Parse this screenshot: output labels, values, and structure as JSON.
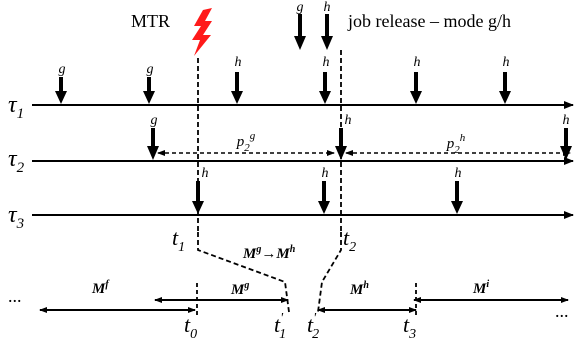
{
  "legend": {
    "mtr": "MTR",
    "arrow_g": "g",
    "arrow_h": "h",
    "job_release_text": "job release – mode g/h"
  },
  "tasks": [
    {
      "id": "tau1",
      "base": "τ",
      "sub": "1"
    },
    {
      "id": "tau2",
      "base": "τ",
      "sub": "2"
    },
    {
      "id": "tau3",
      "base": "τ",
      "sub": "3"
    }
  ],
  "task1_release_labels": [
    "g",
    "g",
    "h",
    "h",
    "h",
    "h"
  ],
  "task2_release_labels": [
    "g",
    "h",
    "h"
  ],
  "task3_release_labels": [
    "h",
    "h",
    "h"
  ],
  "periods": {
    "p2g": {
      "base": "p",
      "sub": "2",
      "sup": "g"
    },
    "p2h": {
      "base": "p",
      "sub": "2",
      "sup": "h"
    }
  },
  "instants": {
    "t1": {
      "base": "t",
      "sub": "1"
    },
    "t2": {
      "base": "t",
      "sub": "2"
    }
  },
  "transition": {
    "from_base": "M",
    "from_sup": "g",
    "arrow": "→",
    "to_base": "M",
    "to_sup": "h"
  },
  "modes": [
    {
      "base": "M",
      "sup": "f"
    },
    {
      "base": "M",
      "sup": "g"
    },
    {
      "base": "M",
      "sup": "h"
    },
    {
      "base": "M",
      "sup": "i"
    }
  ],
  "timeline_ellipsis": "...",
  "timeline_ticks": [
    {
      "base": "t",
      "sub": "0"
    },
    {
      "base": "t",
      "sub": "1",
      "prime": "'"
    },
    {
      "base": "t",
      "sub": "2",
      "prime": "'"
    },
    {
      "base": "t",
      "sub": "3"
    }
  ]
}
